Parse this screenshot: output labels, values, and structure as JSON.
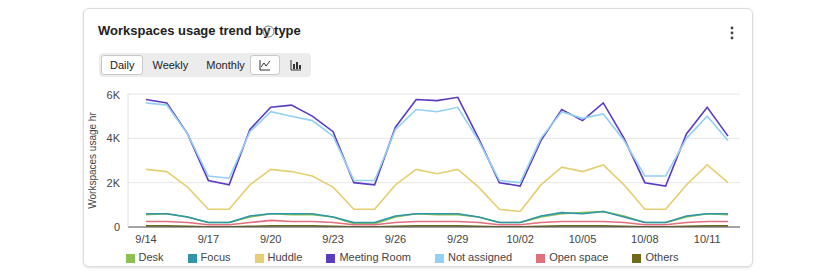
{
  "controls": {
    "periods": [
      "Daily",
      "Weekly",
      "Monthly"
    ],
    "selected": "Daily"
  },
  "chart_data": {
    "type": "line",
    "title": "Workspaces usage trend by type",
    "y_label": "Workspaces usage hr",
    "categories": [
      "9/14",
      null,
      null,
      "9/17",
      null,
      null,
      "9/20",
      null,
      null,
      "9/23",
      null,
      null,
      "9/26",
      null,
      null,
      "9/29",
      null,
      null,
      "10/02",
      null,
      null,
      "10/05",
      null,
      null,
      "10/08",
      null,
      null,
      "10/11",
      null
    ],
    "series": [
      {
        "name": "Desk",
        "color": "#8cc152",
        "values": [
          550,
          600,
          450,
          200,
          200,
          450,
          600,
          550,
          550,
          450,
          150,
          150,
          450,
          600,
          550,
          550,
          450,
          200,
          200,
          450,
          600,
          650,
          700,
          500,
          200,
          200,
          450,
          600,
          550
        ]
      },
      {
        "name": "Focus",
        "color": "#2f95a8",
        "values": [
          600,
          600,
          450,
          200,
          200,
          500,
          600,
          600,
          600,
          450,
          200,
          200,
          500,
          600,
          600,
          600,
          450,
          200,
          200,
          500,
          650,
          600,
          700,
          450,
          200,
          200,
          500,
          600,
          600
        ]
      },
      {
        "name": "Huddle",
        "color": "#e6cf72",
        "values": [
          2600,
          2500,
          1800,
          800,
          800,
          1900,
          2600,
          2500,
          2300,
          1800,
          800,
          800,
          1900,
          2600,
          2400,
          2600,
          1800,
          800,
          700,
          1900,
          2700,
          2500,
          2800,
          1900,
          800,
          800,
          1900,
          2800,
          2000
        ]
      },
      {
        "name": "Meeting Room",
        "color": "#5a3bc2",
        "values": [
          5750,
          5600,
          4200,
          2100,
          1900,
          4400,
          5400,
          5500,
          5000,
          4300,
          2000,
          1900,
          4500,
          5750,
          5700,
          5850,
          4000,
          2000,
          1850,
          3900,
          5300,
          4800,
          5600,
          4000,
          2000,
          1850,
          4200,
          5400,
          4100
        ]
      },
      {
        "name": "Not assigned",
        "color": "#94d0f4",
        "values": [
          5600,
          5500,
          4200,
          2300,
          2200,
          4300,
          5200,
          5000,
          4800,
          4100,
          2100,
          2100,
          4400,
          5300,
          5200,
          5400,
          3900,
          2100,
          2000,
          4000,
          5200,
          4900,
          5100,
          3900,
          2300,
          2300,
          4000,
          5000,
          3900
        ]
      },
      {
        "name": "Open space",
        "color": "#e0707e",
        "values": [
          250,
          250,
          200,
          100,
          100,
          200,
          300,
          250,
          250,
          200,
          100,
          100,
          200,
          250,
          250,
          250,
          200,
          100,
          100,
          200,
          250,
          250,
          250,
          200,
          100,
          100,
          200,
          250,
          250
        ]
      },
      {
        "name": "Others",
        "color": "#6e6a1a",
        "values": [
          50,
          50,
          30,
          10,
          10,
          30,
          50,
          50,
          50,
          30,
          10,
          10,
          30,
          50,
          50,
          50,
          30,
          10,
          10,
          30,
          50,
          50,
          50,
          30,
          10,
          10,
          30,
          50,
          50
        ]
      }
    ],
    "ylim": [
      0,
      6000
    ],
    "yticks": [
      0,
      {
        "value": 2000,
        "label": "2K"
      },
      {
        "value": 4000,
        "label": "4K"
      },
      {
        "value": 6000,
        "label": "6K"
      }
    ],
    "grid": true
  }
}
